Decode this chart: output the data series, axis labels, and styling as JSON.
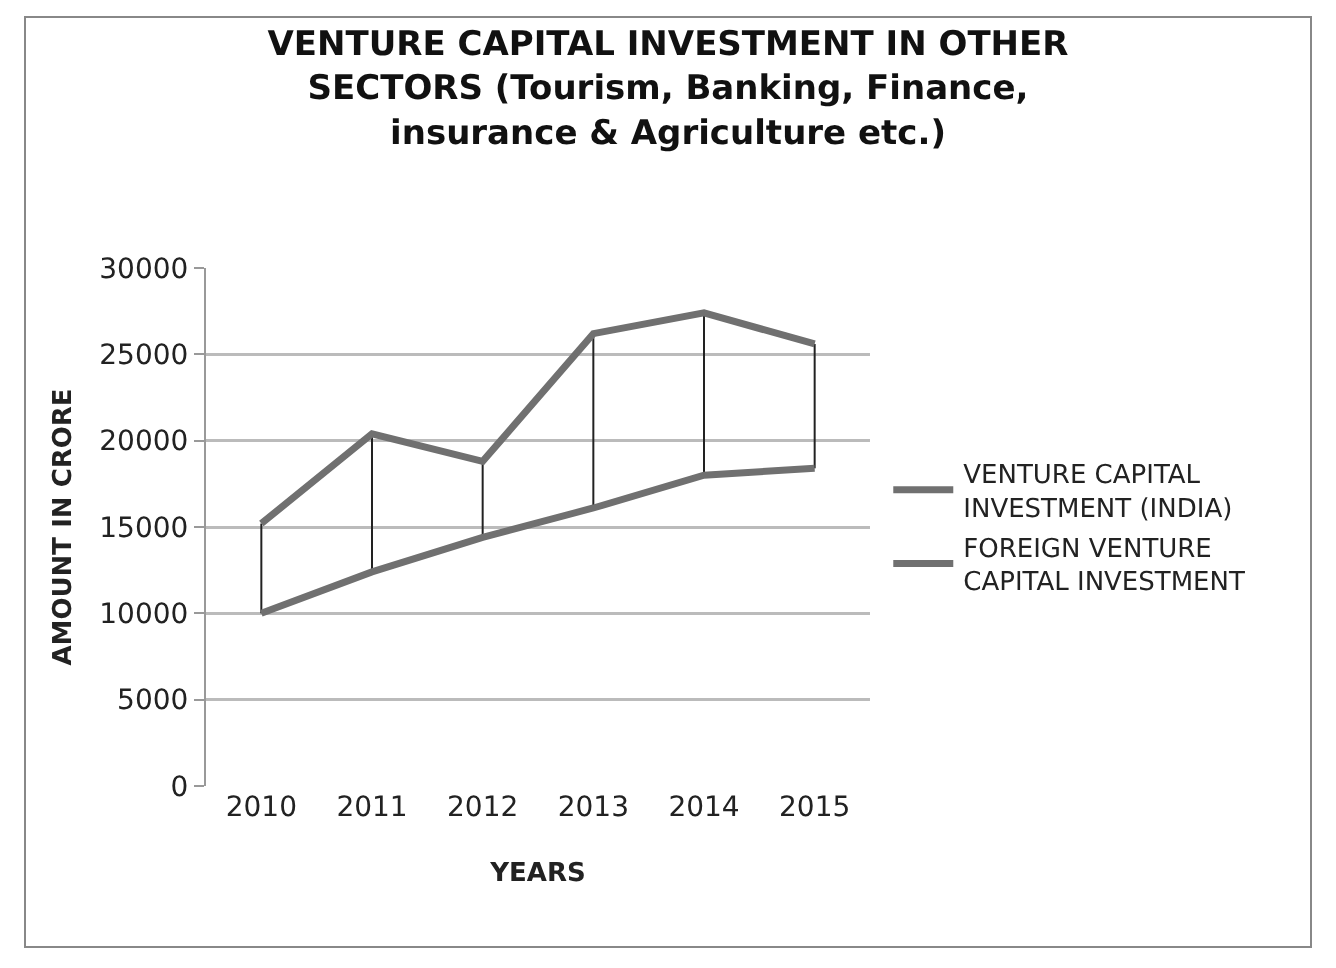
{
  "chart_data": {
    "type": "line",
    "title": "VENTURE CAPITAL INVESTMENT IN OTHER SECTORS (Tourism, Banking, Finance, insurance & Agriculture etc.)",
    "xlabel": "YEARS",
    "ylabel": "AMOUNT IN CRORE",
    "categories": [
      "2010",
      "2011",
      "2012",
      "2013",
      "2014",
      "2015"
    ],
    "series": [
      {
        "name": "VENTURE CAPITAL INVESTMENT (INDIA)",
        "color": "#707070",
        "values": [
          10000,
          12400,
          14400,
          16100,
          18000,
          18400
        ],
        "errors": [
          [
            10000,
            15200
          ],
          [
            12400,
            20400
          ],
          [
            14400,
            18800
          ],
          [
            16100,
            26200
          ],
          [
            18000,
            27400
          ],
          [
            18400,
            25600
          ]
        ]
      },
      {
        "name": "FOREIGN VENTURE CAPITAL INVESTMENT",
        "color": "#707070",
        "values": [
          15200,
          20400,
          18800,
          26200,
          27400,
          25600
        ]
      }
    ],
    "ylim": [
      0,
      30000
    ],
    "yticks": [
      0,
      5000,
      10000,
      15000,
      20000,
      25000,
      30000
    ],
    "grid": "y",
    "legend": "right",
    "marker": "none",
    "line_style": "solid"
  }
}
